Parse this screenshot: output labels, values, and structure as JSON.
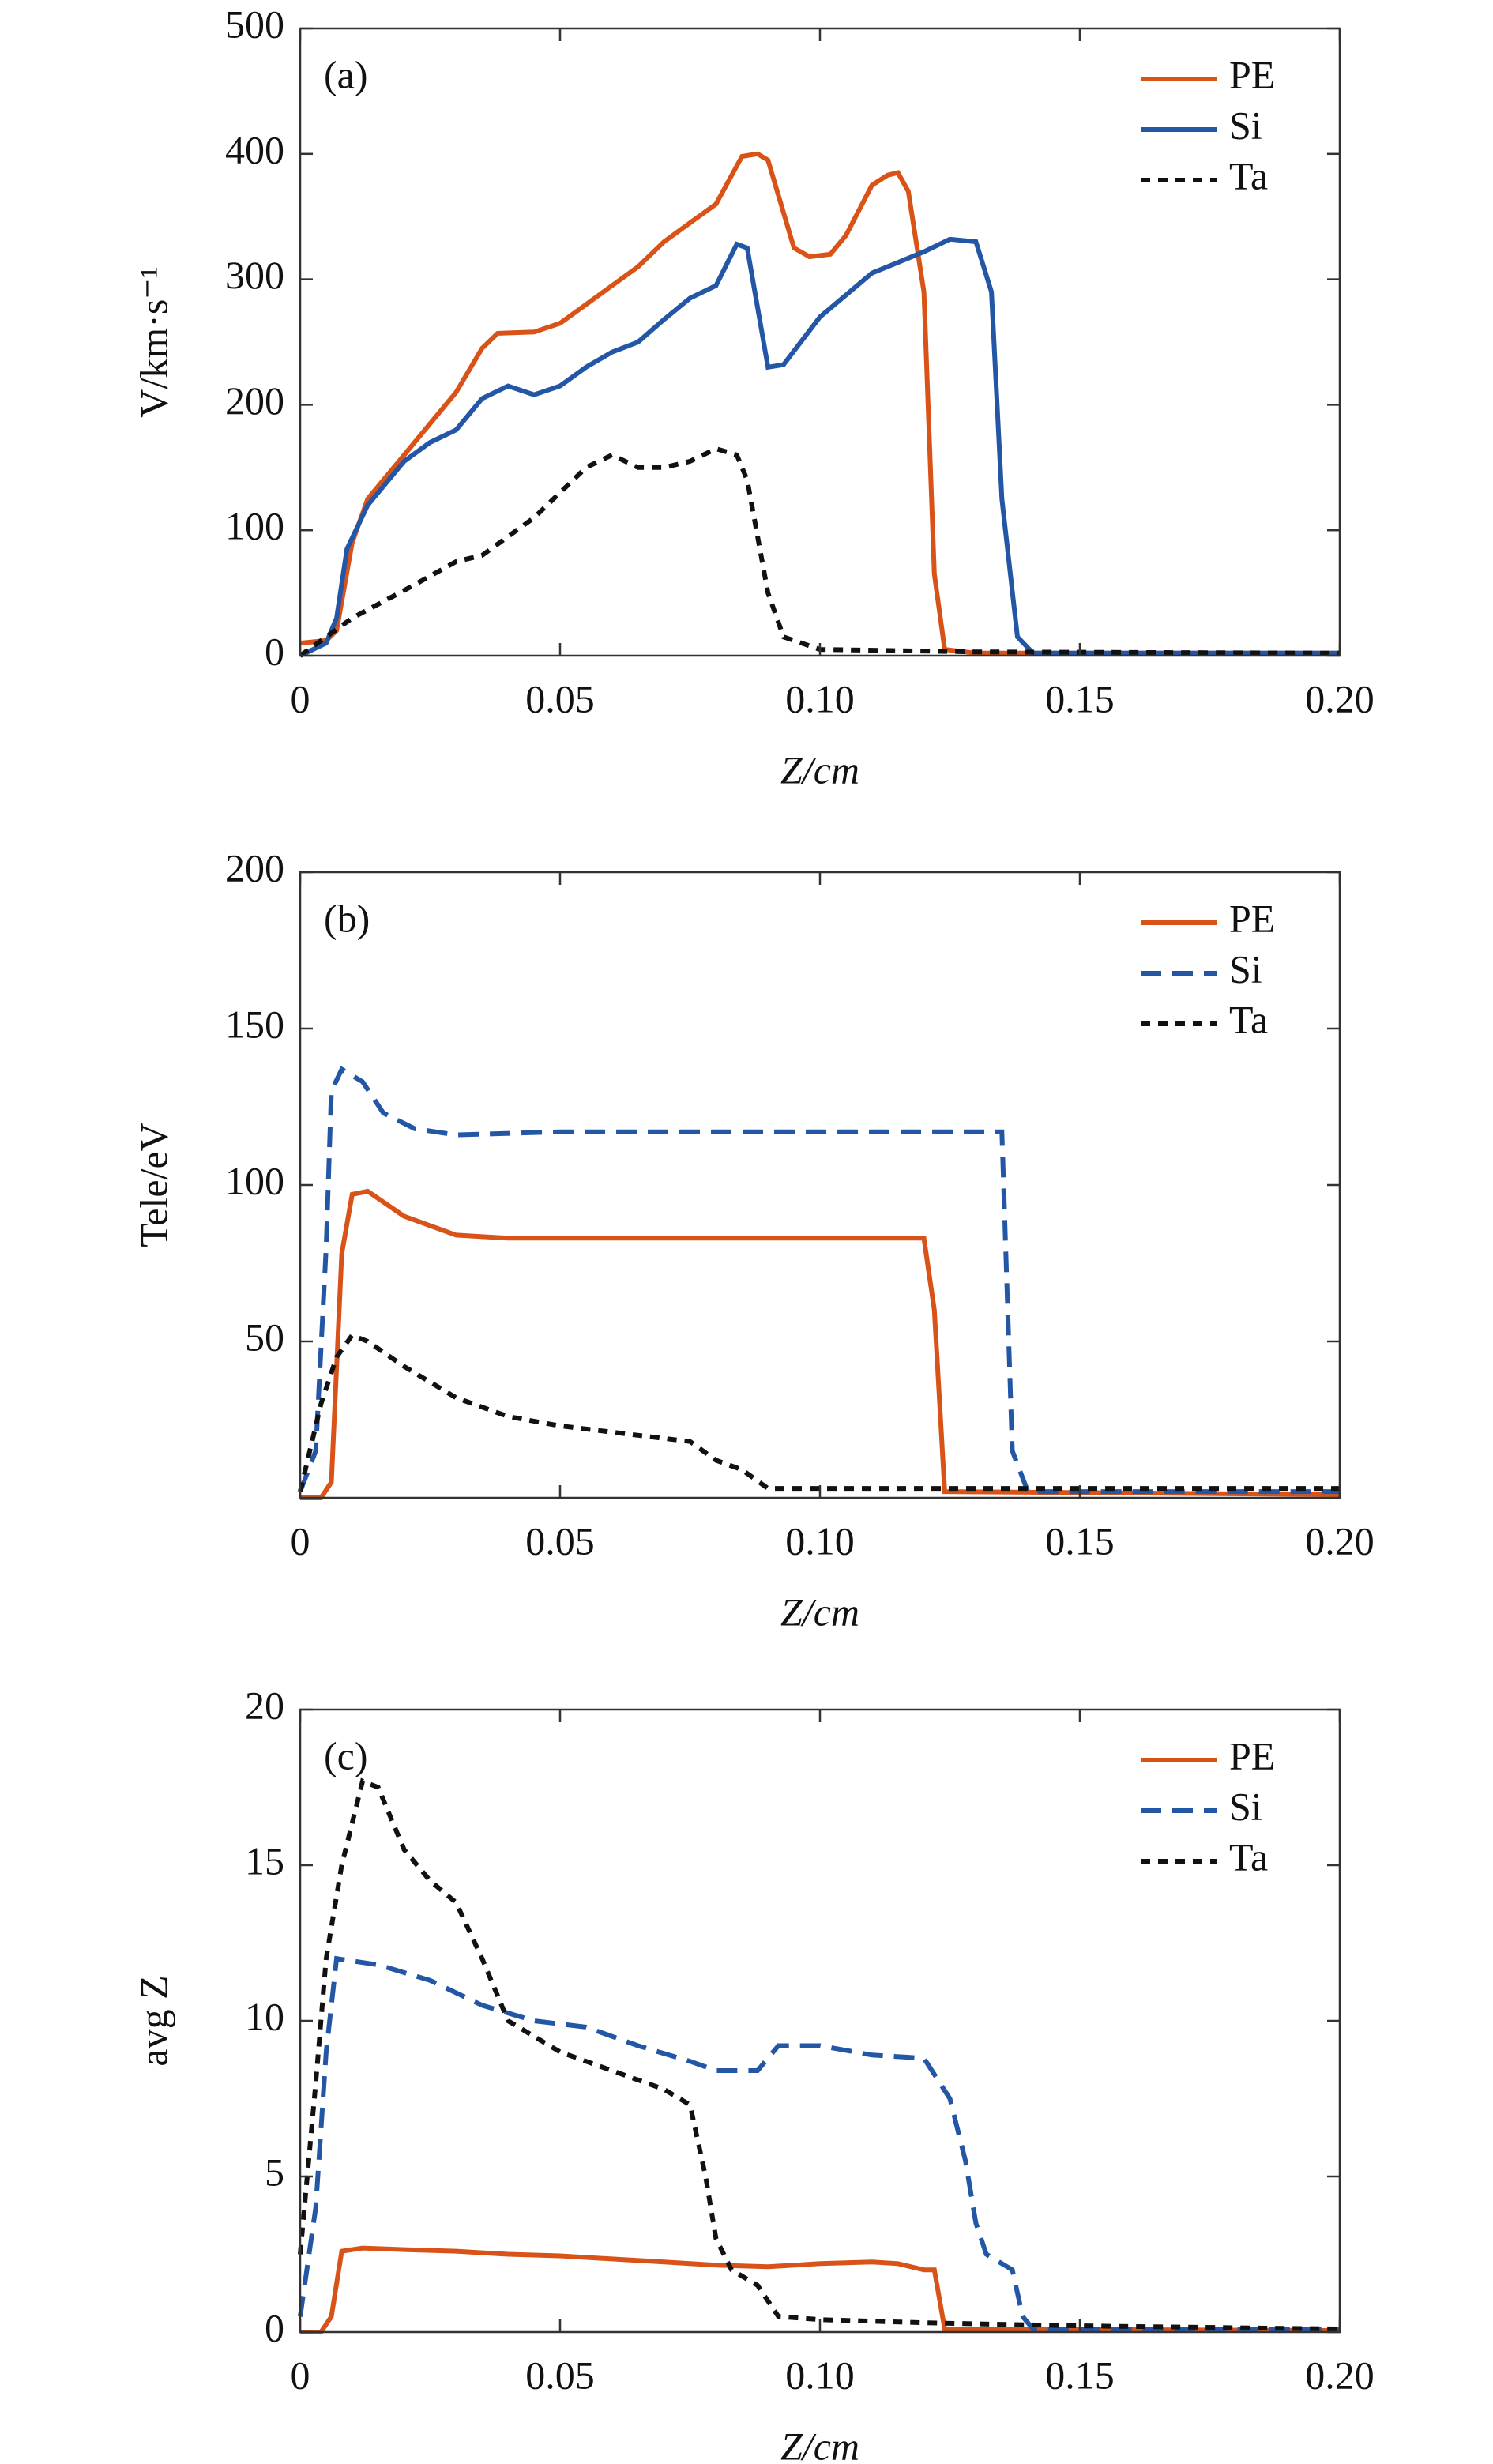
{
  "chart_data": [
    {
      "type": "line",
      "panel": "(a)",
      "x_label": "Z/cm",
      "y_label": "V/km·s⁻¹",
      "xlim": [
        0,
        0.2
      ],
      "xticks": [
        0,
        0.05,
        {
          "value": 0.1,
          "label": "0.10"
        },
        0.15,
        {
          "value": 0.2,
          "label": "0.20"
        }
      ],
      "ylim": [
        0,
        500
      ],
      "yticks": [
        0,
        100,
        200,
        300,
        400,
        500
      ],
      "legend": "upper right",
      "series": [
        {
          "name": "PE",
          "color": "#d95319",
          "dash": "solid",
          "x": [
            0,
            0.005,
            0.007,
            0.01,
            0.013,
            0.02,
            0.025,
            0.03,
            0.035,
            0.038,
            0.045,
            0.05,
            0.055,
            0.06,
            0.065,
            0.07,
            0.075,
            0.08,
            0.085,
            0.088,
            0.09,
            0.095,
            0.098,
            0.102,
            0.105,
            0.11,
            0.113,
            0.115,
            0.117,
            0.12,
            0.122,
            0.124,
            0.13,
            0.2
          ],
          "values": [
            10,
            12,
            20,
            90,
            125,
            160,
            185,
            210,
            245,
            257,
            258,
            265,
            280,
            295,
            310,
            330,
            345,
            360,
            398,
            400,
            395,
            325,
            318,
            320,
            335,
            375,
            383,
            385,
            370,
            290,
            65,
            5,
            2,
            2
          ]
        },
        {
          "name": "Si",
          "color": "#2456a6",
          "dash": "solid",
          "x": [
            0,
            0.005,
            0.007,
            0.009,
            0.013,
            0.02,
            0.025,
            0.03,
            0.035,
            0.04,
            0.045,
            0.05,
            0.055,
            0.06,
            0.065,
            0.07,
            0.075,
            0.08,
            0.084,
            0.086,
            0.09,
            0.093,
            0.1,
            0.11,
            0.12,
            0.125,
            0.13,
            0.133,
            0.135,
            0.138,
            0.141,
            0.2
          ],
          "values": [
            0,
            10,
            30,
            85,
            120,
            155,
            170,
            180,
            205,
            215,
            208,
            215,
            230,
            242,
            250,
            268,
            285,
            295,
            328,
            325,
            230,
            232,
            270,
            305,
            322,
            332,
            330,
            290,
            125,
            15,
            2,
            2
          ]
        },
        {
          "name": "Ta",
          "color": "#111111",
          "dash": "dotted",
          "x": [
            0,
            0.01,
            0.02,
            0.03,
            0.035,
            0.045,
            0.055,
            0.06,
            0.065,
            0.07,
            0.075,
            0.08,
            0.084,
            0.086,
            0.09,
            0.093,
            0.1,
            0.13,
            0.2
          ],
          "values": [
            0,
            30,
            52,
            75,
            80,
            110,
            150,
            160,
            150,
            150,
            155,
            165,
            160,
            140,
            50,
            15,
            5,
            3,
            2
          ]
        }
      ]
    },
    {
      "type": "line",
      "panel": "(b)",
      "x_label": "Z/cm",
      "y_label": "Tele/eV",
      "xlim": [
        0,
        0.2
      ],
      "xticks": [
        0,
        0.05,
        {
          "value": 0.1,
          "label": "0.10"
        },
        0.15,
        {
          "value": 0.2,
          "label": "0.20"
        }
      ],
      "ylim": [
        0,
        200
      ],
      "yticks": [
        50,
        100,
        150,
        200
      ],
      "legend": "upper right",
      "series": [
        {
          "name": "PE",
          "color": "#d95319",
          "dash": "solid",
          "x": [
            0,
            0.004,
            0.006,
            0.008,
            0.01,
            0.013,
            0.02,
            0.03,
            0.04,
            0.12,
            0.122,
            0.124,
            0.2
          ],
          "values": [
            0,
            0,
            5,
            78,
            97,
            98,
            90,
            84,
            83,
            83,
            60,
            2,
            1
          ]
        },
        {
          "name": "Si",
          "color": "#2456a6",
          "dash": "dashed",
          "x": [
            0,
            0.003,
            0.005,
            0.006,
            0.008,
            0.012,
            0.016,
            0.022,
            0.03,
            0.05,
            0.135,
            0.137,
            0.14,
            0.2
          ],
          "values": [
            2,
            15,
            80,
            130,
            137,
            133,
            123,
            118,
            116,
            117,
            117,
            15,
            2,
            2
          ]
        },
        {
          "name": "Ta",
          "color": "#111111",
          "dash": "dotted",
          "x": [
            0,
            0.004,
            0.007,
            0.01,
            0.013,
            0.02,
            0.03,
            0.04,
            0.05,
            0.06,
            0.07,
            0.075,
            0.08,
            0.085,
            0.09,
            0.2
          ],
          "values": [
            2,
            30,
            45,
            52,
            50,
            42,
            32,
            26,
            23,
            21,
            19,
            18,
            12,
            9,
            3,
            3
          ]
        }
      ]
    },
    {
      "type": "line",
      "panel": "(c)",
      "x_label": "Z/cm",
      "y_label": "avg Z",
      "xlim": [
        0,
        0.2
      ],
      "xticks": [
        0,
        0.05,
        {
          "value": 0.1,
          "label": "0.10"
        },
        0.15,
        {
          "value": 0.2,
          "label": "0.20"
        }
      ],
      "ylim": [
        0,
        20
      ],
      "yticks": [
        0,
        5,
        10,
        15,
        20
      ],
      "legend": "upper right",
      "series": [
        {
          "name": "PE",
          "color": "#d95319",
          "dash": "solid",
          "x": [
            0,
            0.004,
            0.006,
            0.008,
            0.012,
            0.02,
            0.03,
            0.04,
            0.05,
            0.06,
            0.07,
            0.08,
            0.09,
            0.1,
            0.11,
            0.115,
            0.12,
            0.122,
            0.124,
            0.2
          ],
          "values": [
            0,
            0,
            0.5,
            2.6,
            2.7,
            2.65,
            2.6,
            2.5,
            2.45,
            2.35,
            2.25,
            2.15,
            2.1,
            2.2,
            2.25,
            2.2,
            2.0,
            2.0,
            0.1,
            0.05
          ]
        },
        {
          "name": "Si",
          "color": "#2456a6",
          "dash": "dashed",
          "x": [
            0,
            0.003,
            0.005,
            0.007,
            0.015,
            0.025,
            0.035,
            0.045,
            0.055,
            0.065,
            0.075,
            0.08,
            0.088,
            0.092,
            0.1,
            0.11,
            0.12,
            0.125,
            0.128,
            0.13,
            0.132,
            0.137,
            0.139,
            0.141,
            0.2
          ],
          "values": [
            0.5,
            4,
            9,
            12,
            11.8,
            11.3,
            10.5,
            10,
            9.8,
            9.2,
            8.7,
            8.4,
            8.4,
            9.2,
            9.2,
            8.9,
            8.8,
            7.5,
            5.5,
            3.5,
            2.5,
            2,
            0.5,
            0.1,
            0.1
          ]
        },
        {
          "name": "Ta",
          "color": "#111111",
          "dash": "dotted",
          "x": [
            0,
            0.003,
            0.005,
            0.008,
            0.012,
            0.015,
            0.02,
            0.025,
            0.03,
            0.035,
            0.04,
            0.05,
            0.06,
            0.07,
            0.075,
            0.078,
            0.08,
            0.083,
            0.088,
            0.092,
            0.1,
            0.12,
            0.15,
            0.2
          ],
          "values": [
            2.5,
            8,
            12,
            15,
            17.7,
            17.5,
            15.5,
            14.5,
            13.8,
            12,
            10,
            9,
            8.4,
            7.8,
            7.3,
            5,
            3,
            2,
            1.5,
            0.5,
            0.4,
            0.3,
            0.2,
            0.1
          ]
        }
      ]
    }
  ]
}
